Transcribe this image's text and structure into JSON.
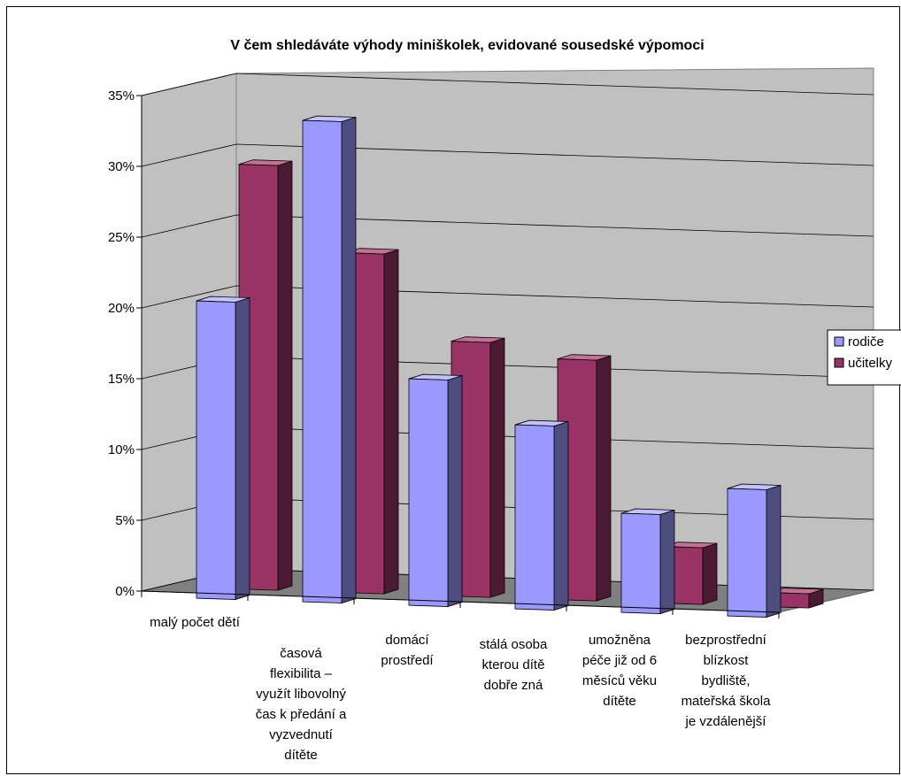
{
  "chart_data": {
    "type": "bar",
    "title": "V čem shledáváte výhody miniškolek, evidované sousedské výpomoci",
    "xlabel": "",
    "ylabel": "",
    "ylim": [
      0,
      35
    ],
    "y_ticks": [
      "0%",
      "5%",
      "10%",
      "15%",
      "20%",
      "25%",
      "30%",
      "35%"
    ],
    "categories": [
      [
        "malý počet dětí"
      ],
      [
        "časová",
        "flexibilita –",
        "využít libovolný",
        "čas k předání a",
        "vyzvednutí",
        "dítěte"
      ],
      [
        "domácí",
        "prostředí"
      ],
      [
        "stálá osoba",
        "kterou dítě",
        "dobře zná"
      ],
      [
        "umožněna",
        "péče již od 6",
        "měsíců věku",
        "dítěte"
      ],
      [
        "bezprostřední",
        "blízkost",
        "bydliště,",
        "mateřská škola",
        "je vzdálenější"
      ]
    ],
    "series": [
      {
        "name": "rodiče",
        "values": [
          21,
          34,
          16,
          13,
          7,
          9
        ]
      },
      {
        "name": "učitelky",
        "values": [
          30,
          24,
          18,
          17,
          4,
          1
        ]
      }
    ],
    "legend_position": "right",
    "grid": true,
    "colors": {
      "s0_front": "#9999ff",
      "s0_side": "#4d4d80",
      "s0_top": "#c2c2ff",
      "s1_front": "#993366",
      "s1_side": "#4d1a33",
      "s1_top": "#c27094",
      "wall": "#c0c0c0",
      "floor": "#808080",
      "outline": "#000000"
    }
  }
}
